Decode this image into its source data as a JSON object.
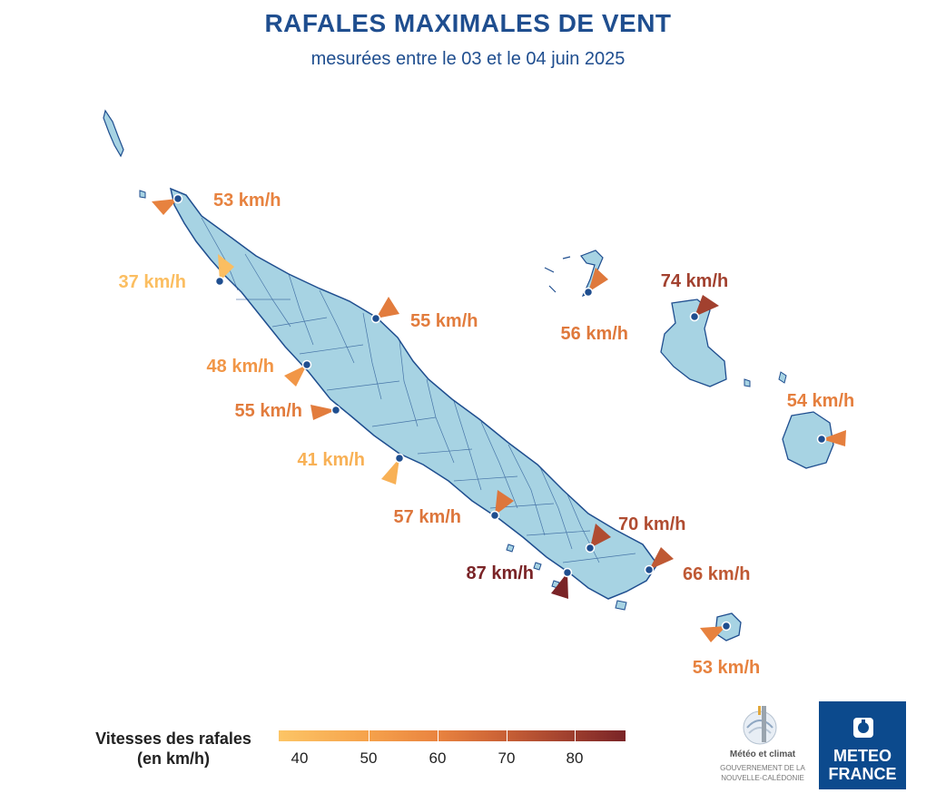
{
  "title": "RAFALES MAXIMALES DE VENT",
  "subtitle": "mesurées entre le 03 et le 04 juin 2025",
  "colors": {
    "land": "#a7d3e3",
    "coast": "#1f4e8f",
    "title": "#1f4e8f",
    "station": "#1f4e8f",
    "scale_min": "#fcc566",
    "scale_max": "#7a2427"
  },
  "stations": [
    {
      "label": "53 km/h",
      "value": 53
    },
    {
      "label": "37 km/h",
      "value": 37
    },
    {
      "label": "55 km/h",
      "value": 55
    },
    {
      "label": "48 km/h",
      "value": 48
    },
    {
      "label": "55 km/h",
      "value": 55
    },
    {
      "label": "41 km/h",
      "value": 41
    },
    {
      "label": "57 km/h",
      "value": 57
    },
    {
      "label": "70 km/h",
      "value": 70
    },
    {
      "label": "87 km/h",
      "value": 87
    },
    {
      "label": "66 km/h",
      "value": 66
    },
    {
      "label": "56 km/h",
      "value": 56
    },
    {
      "label": "74 km/h",
      "value": 74
    },
    {
      "label": "54 km/h",
      "value": 54
    },
    {
      "label": "53 km/h",
      "value": 53
    }
  ],
  "legend": {
    "title_line1": "Vitesses des rafales",
    "title_line2": "(en km/h)",
    "ticks": [
      "40",
      "50",
      "60",
      "70",
      "80"
    ]
  },
  "logos": {
    "meteo_climat_name": "Météo et climat",
    "meteo_climat_sub1": "GOUVERNEMENT DE LA",
    "meteo_climat_sub2": "NOUVELLE-CALÉDONIE",
    "meteo_france_line1": "METEO",
    "meteo_france_line2": "FRANCE"
  }
}
